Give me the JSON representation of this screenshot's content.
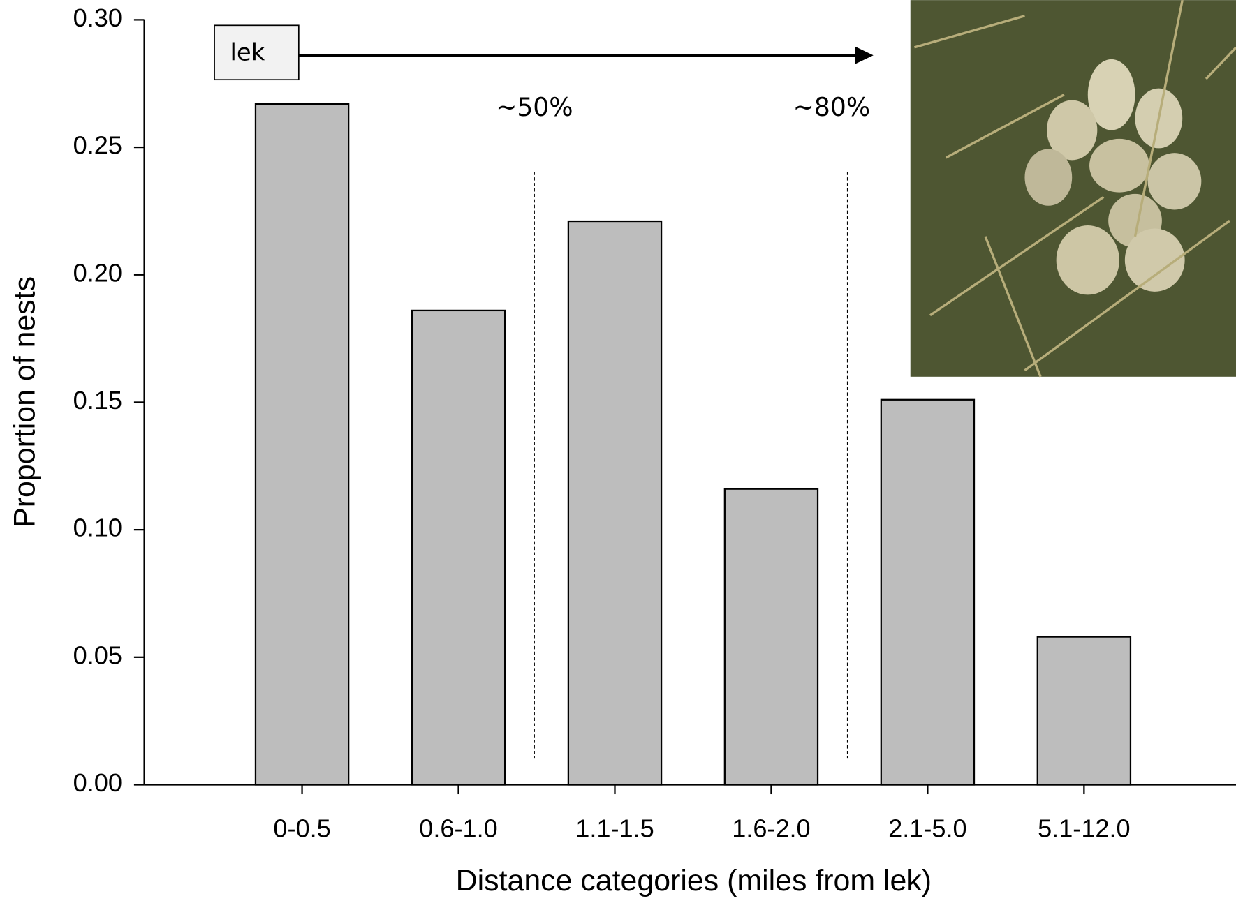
{
  "chart_data": {
    "type": "bar",
    "x_label": "Distance categories (miles from lek)",
    "y_label": "Proportion of nests",
    "categories": [
      "0-0.5",
      "0.6-1.0",
      "1.1-1.5",
      "1.6-2.0",
      "2.1-5.0",
      "5.1-12.0"
    ],
    "values": [
      0.267,
      0.186,
      0.221,
      0.116,
      0.151,
      0.058
    ],
    "color": "#bdbdbd",
    "ylim": [
      0,
      0.3
    ],
    "yticks": [
      {
        "value": 0,
        "label": "0.00"
      },
      {
        "value": 0.05,
        "label": "0.05"
      },
      {
        "value": 0.1,
        "label": "0.10"
      },
      {
        "value": 0.15,
        "label": "0.15"
      },
      {
        "value": 0.2,
        "label": "0.20"
      },
      {
        "value": 0.25,
        "label": "0.25"
      },
      {
        "value": 0.3,
        "label": "0.30"
      }
    ],
    "annotations": {
      "origin": "lek",
      "divider_1": "~50%",
      "divider_2": "~80%"
    }
  }
}
